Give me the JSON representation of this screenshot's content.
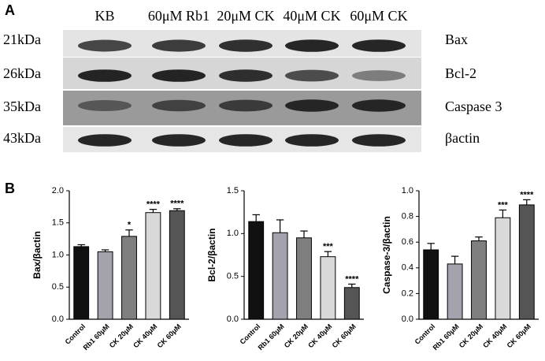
{
  "panel_labels": [
    "A",
    "B"
  ],
  "blot": {
    "lanes": [
      "KB",
      "60μM Rb1",
      "20μM CK",
      "40μM CK",
      "60μM CK"
    ],
    "sizes": [
      "21kDa",
      "26kDa",
      "35kDa",
      "43kDa"
    ],
    "proteins": [
      "Bax",
      "Bcl-2",
      "Caspase 3",
      "βactin"
    ]
  },
  "chart_data": [
    {
      "type": "bar",
      "ylabel": "Bax/βactin",
      "categories": [
        "Control",
        "Rb1 60μM",
        "CK 20μM",
        "CK 40μM",
        "CK 60μM"
      ],
      "values": [
        1.13,
        1.05,
        1.29,
        1.66,
        1.69
      ],
      "errors": [
        0.03,
        0.03,
        0.1,
        0.05,
        0.03
      ],
      "significance": [
        null,
        null,
        "*",
        "****",
        "****"
      ],
      "colors": [
        "#111111",
        "#a3a2ad",
        "#7f7f7f",
        "#d9d9d9",
        "#555555"
      ],
      "ylim": [
        0,
        2.0
      ],
      "yticks": [
        {
          "value": 0,
          "label": "0.0"
        },
        0.5,
        {
          "value": 1,
          "label": "1.0"
        },
        1.5,
        {
          "value": 2,
          "label": "2.0"
        }
      ]
    },
    {
      "type": "bar",
      "ylabel": "Bcl-2/βactin",
      "categories": [
        "Control",
        "Rb1 60μM",
        "CK 20μM",
        "CK 40μM",
        "CK 60μM"
      ],
      "values": [
        1.14,
        1.01,
        0.95,
        0.73,
        0.37
      ],
      "errors": [
        0.08,
        0.15,
        0.08,
        0.06,
        0.04
      ],
      "significance": [
        null,
        null,
        null,
        "***",
        "****"
      ],
      "colors": [
        "#111111",
        "#a3a2ad",
        "#7f7f7f",
        "#d9d9d9",
        "#555555"
      ],
      "ylim": [
        0,
        1.5
      ],
      "yticks": [
        {
          "value": 0,
          "label": "0.0"
        },
        0.5,
        {
          "value": 1,
          "label": "1.0"
        },
        1.5
      ]
    },
    {
      "type": "bar",
      "ylabel": "Caspase-3/βactin",
      "categories": [
        "Control",
        "Rb1 60μM",
        "CK 20μM",
        "CK 40μM",
        "CK 60μM"
      ],
      "values": [
        0.54,
        0.43,
        0.61,
        0.79,
        0.89
      ],
      "errors": [
        0.05,
        0.06,
        0.03,
        0.06,
        0.04
      ],
      "significance": [
        null,
        null,
        null,
        "***",
        "****"
      ],
      "colors": [
        "#111111",
        "#a3a2ad",
        "#7f7f7f",
        "#d9d9d9",
        "#555555"
      ],
      "ylim": [
        0,
        1.0
      ],
      "yticks": [
        {
          "value": 0,
          "label": "0.0"
        },
        0.2,
        0.4,
        0.6,
        0.8,
        {
          "value": 1,
          "label": "1.0"
        }
      ]
    }
  ]
}
